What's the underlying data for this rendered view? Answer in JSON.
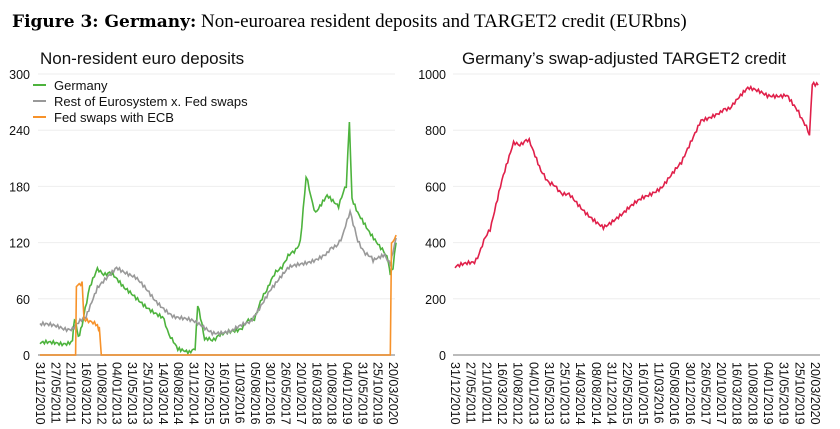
{
  "figure": {
    "title_bold": "Figure 3: Germany:",
    "title_rest": " Non-euroarea resident deposits and TARGET2 credit (EURbns)"
  },
  "chart_data": [
    {
      "type": "line",
      "title": "Non-resident euro deposits",
      "xlabel": "",
      "ylabel": "",
      "ylim": [
        0,
        300
      ],
      "yticks": [
        "0",
        "60",
        "120",
        "180",
        "240",
        "300"
      ],
      "xlim": [
        2011.0,
        2020.22
      ],
      "xticks": [
        "31/12/2010",
        "27/05/2011",
        "21/10/2011",
        "16/03/2012",
        "10/08/2012",
        "04/01/2013",
        "31/05/2013",
        "25/10/2013",
        "14/03/2014",
        "08/08/2014",
        "31/12/2014",
        "22/05/2015",
        "16/10/2015",
        "11/03/2016",
        "05/08/2016",
        "30/12/2016",
        "26/05/2017",
        "20/10/2017",
        "16/03/2018",
        "10/08/2018",
        "04/01/2019",
        "31/05/2019",
        "25/10/2019",
        "20/03/2020"
      ],
      "legend_position": "top-left",
      "series": [
        {
          "name": "Germany",
          "color": "#4db33d",
          "x": [
            2011.0,
            2011.5,
            2011.85,
            2011.9,
            2012.0,
            2012.1,
            2012.3,
            2012.5,
            2012.9,
            2013.2,
            2013.7,
            2014.2,
            2014.45,
            2014.6,
            2014.9,
            2015.05,
            2015.12,
            2015.3,
            2015.7,
            2016.2,
            2016.6,
            2017.0,
            2017.4,
            2017.8,
            2017.95,
            2018.2,
            2018.5,
            2018.8,
            2019.0,
            2019.08,
            2019.15,
            2019.3,
            2019.6,
            2019.9,
            2020.1,
            2020.15,
            2020.22,
            2020.3
          ],
          "y": [
            12,
            12,
            15,
            40,
            20,
            30,
            75,
            90,
            85,
            70,
            55,
            40,
            15,
            5,
            3,
            8,
            55,
            15,
            20,
            28,
            40,
            78,
            100,
            120,
            190,
            150,
            170,
            160,
            180,
            250,
            165,
            150,
            130,
            115,
            100,
            85,
            95,
            120
          ]
        },
        {
          "name": "Rest of Eurosystem x. Fed swaps",
          "color": "#999999",
          "x": [
            2011.0,
            2011.5,
            2011.85,
            2012.2,
            2012.5,
            2013.0,
            2013.5,
            2014.0,
            2014.5,
            2015.0,
            2015.5,
            2016.0,
            2016.5,
            2017.0,
            2017.5,
            2018.0,
            2018.5,
            2018.9,
            2019.1,
            2019.3,
            2019.7,
            2020.0,
            2020.15,
            2020.3
          ],
          "y": [
            32,
            30,
            28,
            40,
            70,
            95,
            82,
            58,
            42,
            35,
            25,
            25,
            35,
            70,
            92,
            100,
            108,
            125,
            155,
            120,
            100,
            105,
            95,
            125
          ]
        },
        {
          "name": "Fed swaps with ECB",
          "color": "#f7922a",
          "x": [
            2011.0,
            2011.93,
            2011.95,
            2012.1,
            2012.15,
            2012.5,
            2012.55,
            2012.6,
            2020.15,
            2020.18,
            2020.3
          ],
          "y": [
            0,
            0,
            72,
            75,
            40,
            30,
            30,
            0,
            0,
            120,
            128
          ]
        }
      ]
    },
    {
      "type": "line",
      "title": "Germany’s swap-adjusted TARGET2 credit",
      "ylim": [
        0,
        1000
      ],
      "yticks": [
        "0",
        "200",
        "400",
        "600",
        "800",
        "1000"
      ],
      "xlim": [
        2011.0,
        2020.22
      ],
      "xticks": [
        "31/12/2010",
        "27/05/2011",
        "21/10/2011",
        "16/03/2012",
        "10/08/2012",
        "04/01/2013",
        "31/05/2013",
        "25/10/2013",
        "14/03/2014",
        "08/08/2014",
        "31/12/2014",
        "22/05/2015",
        "16/10/2015",
        "11/03/2016",
        "05/08/2016",
        "30/12/2016",
        "26/05/2017",
        "20/10/2017",
        "16/03/2018",
        "10/08/2018",
        "04/01/2019",
        "31/05/2019",
        "25/10/2019",
        "20/03/2020"
      ],
      "series": [
        {
          "name": "TARGET2 credit",
          "color": "#e0204a",
          "x": [
            2011.0,
            2011.5,
            2011.9,
            2012.2,
            2012.5,
            2012.9,
            2013.2,
            2013.6,
            2014.0,
            2014.5,
            2014.8,
            2015.3,
            2015.8,
            2016.3,
            2016.8,
            2017.3,
            2017.8,
            2018.2,
            2018.5,
            2019.0,
            2019.5,
            2019.8,
            2020.08,
            2020.15,
            2020.3
          ],
          "y": [
            310,
            330,
            450,
            620,
            750,
            760,
            650,
            590,
            560,
            490,
            460,
            500,
            560,
            600,
            680,
            840,
            860,
            900,
            950,
            920,
            930,
            870,
            780,
            960,
            960
          ]
        }
      ]
    }
  ]
}
